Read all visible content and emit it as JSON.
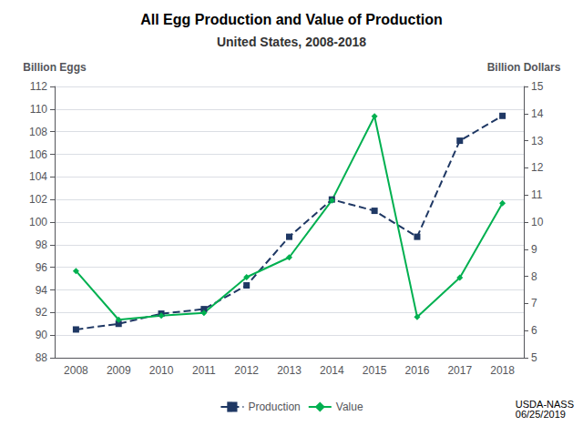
{
  "chart_data": {
    "type": "line",
    "title": "All Egg Production and Value of Production",
    "subtitle": "United States, 2008-2018",
    "categories": [
      "2008",
      "2009",
      "2010",
      "2011",
      "2012",
      "2013",
      "2014",
      "2015",
      "2016",
      "2017",
      "2018"
    ],
    "series": [
      {
        "name": "Production",
        "color": "#1F3864",
        "line_style": "dashed",
        "marker": "square",
        "values": [
          90.5,
          91.0,
          91.9,
          92.3,
          94.4,
          98.7,
          102.0,
          101.0,
          98.7,
          107.2,
          109.4
        ]
      },
      {
        "name": "Value",
        "color": "#00B050",
        "line_style": "solid",
        "marker": "diamond",
        "axis": "y2",
        "values": [
          8.2,
          6.4,
          6.55,
          6.65,
          7.97,
          8.7,
          10.8,
          13.9,
          6.5,
          7.95,
          10.7
        ]
      }
    ],
    "ylabel": "Billion Eggs",
    "y2label": "Billion Dollars",
    "ylim": [
      88,
      112
    ],
    "yticks": [
      88,
      90,
      92,
      94,
      96,
      98,
      100,
      102,
      104,
      106,
      108,
      110,
      112
    ],
    "y2lim": [
      5,
      15
    ],
    "y2ticks": [
      5,
      6,
      7,
      8,
      9,
      10,
      11,
      12,
      13,
      14,
      15
    ],
    "grid": true,
    "legend": "bottom",
    "annotation": "USDA-NASS\n06/25/2019"
  }
}
